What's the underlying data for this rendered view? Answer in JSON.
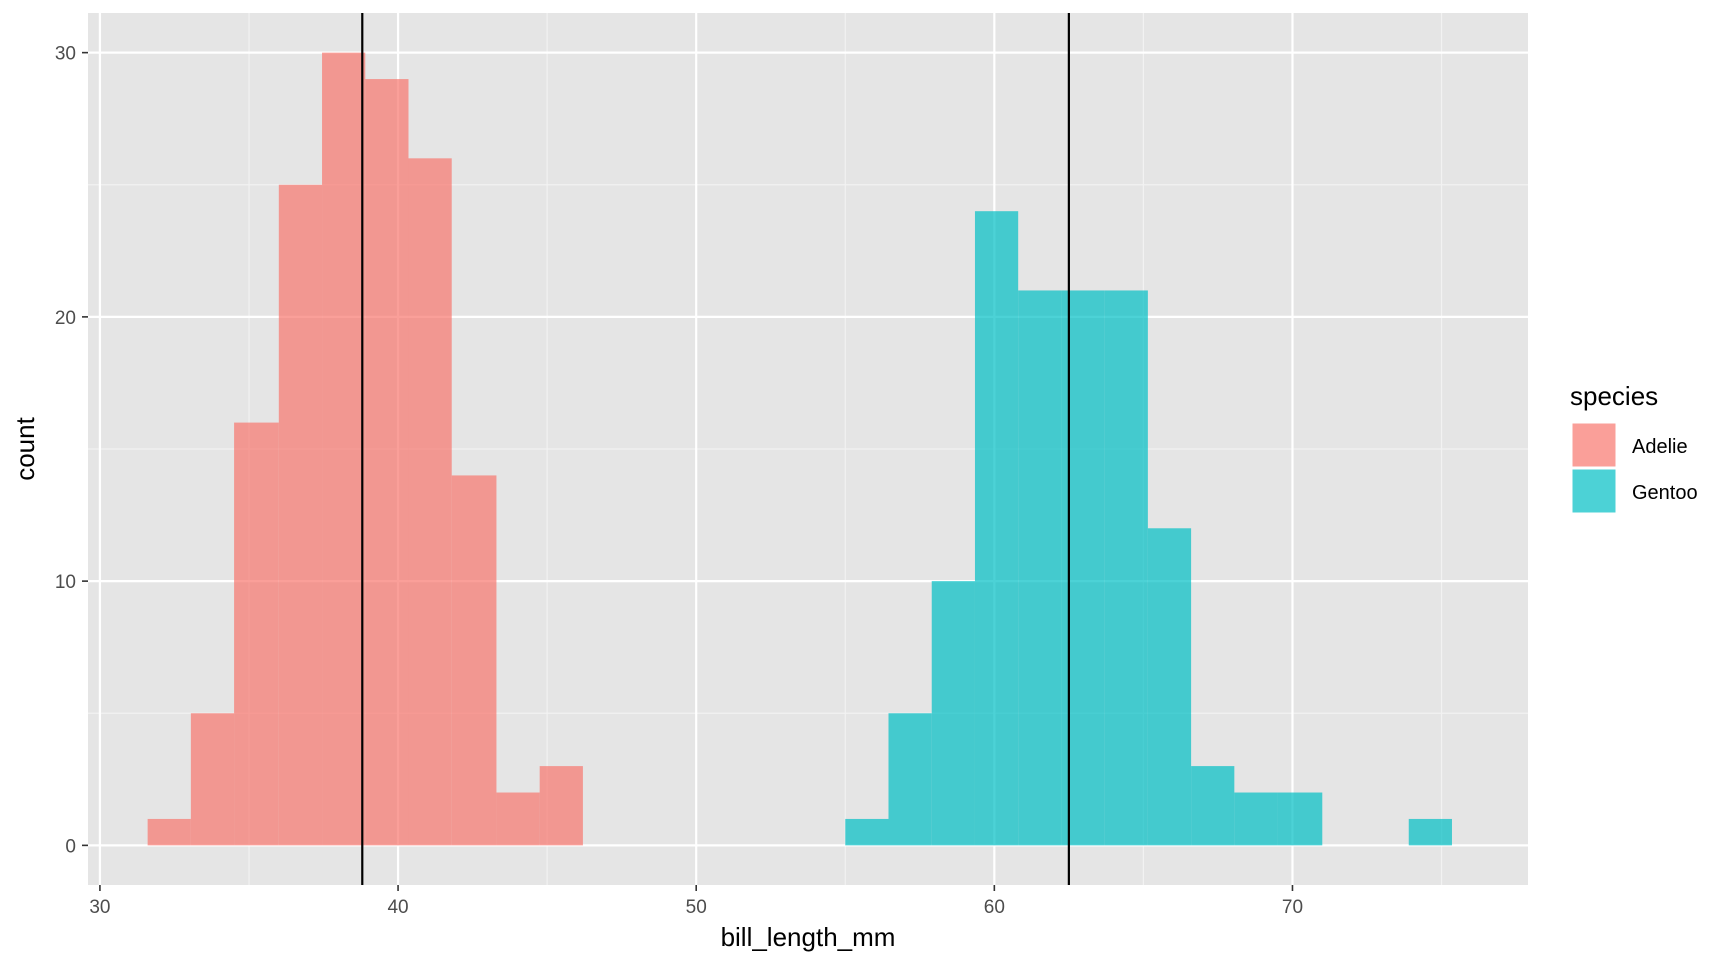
{
  "chart_data": {
    "type": "histogram",
    "xlabel": "bill_length_mm",
    "ylabel": "count",
    "xlim": [
      29.6,
      77.9
    ],
    "ylim": [
      -1.5,
      31.5
    ],
    "x_ticks": [
      30,
      40,
      50,
      60,
      70
    ],
    "y_ticks": [
      0,
      10,
      20,
      30
    ],
    "grid": true,
    "panel_background": "#e5e5e5",
    "legend": {
      "title": "species",
      "position": "right",
      "entries": [
        "Adelie",
        "Gentoo"
      ]
    },
    "series": [
      {
        "name": "Adelie",
        "color": "#f8766d",
        "bins": [
          {
            "x0": 31.6,
            "x1": 33.05,
            "count": 1
          },
          {
            "x0": 33.05,
            "x1": 34.5,
            "count": 5
          },
          {
            "x0": 34.5,
            "x1": 36.0,
            "count": 16
          },
          {
            "x0": 36.0,
            "x1": 37.45,
            "count": 25
          },
          {
            "x0": 37.45,
            "x1": 38.9,
            "count": 30
          },
          {
            "x0": 38.9,
            "x1": 40.35,
            "count": 29
          },
          {
            "x0": 40.35,
            "x1": 41.8,
            "count": 26
          },
          {
            "x0": 41.8,
            "x1": 43.3,
            "count": 14
          },
          {
            "x0": 43.3,
            "x1": 44.75,
            "count": 2
          },
          {
            "x0": 44.75,
            "x1": 46.2,
            "count": 3
          }
        ],
        "mean_line": 38.8
      },
      {
        "name": "Gentoo",
        "color": "#00bfc4",
        "bins": [
          {
            "x0": 55.0,
            "x1": 56.45,
            "count": 1
          },
          {
            "x0": 56.45,
            "x1": 57.9,
            "count": 5
          },
          {
            "x0": 57.9,
            "x1": 59.35,
            "count": 10
          },
          {
            "x0": 59.35,
            "x1": 60.8,
            "count": 24
          },
          {
            "x0": 60.8,
            "x1": 62.25,
            "count": 21
          },
          {
            "x0": 62.25,
            "x1": 63.7,
            "count": 21
          },
          {
            "x0": 63.7,
            "x1": 65.15,
            "count": 21
          },
          {
            "x0": 65.15,
            "x1": 66.6,
            "count": 12
          },
          {
            "x0": 66.6,
            "x1": 68.05,
            "count": 3
          },
          {
            "x0": 68.05,
            "x1": 69.5,
            "count": 2
          },
          {
            "x0": 69.5,
            "x1": 71.0,
            "count": 2
          },
          {
            "x0": 71.0,
            "x1": 72.45,
            "count": 0
          },
          {
            "x0": 72.45,
            "x1": 73.9,
            "count": 0
          },
          {
            "x0": 73.9,
            "x1": 75.35,
            "count": 1
          }
        ],
        "mean_line": 62.5
      }
    ]
  }
}
